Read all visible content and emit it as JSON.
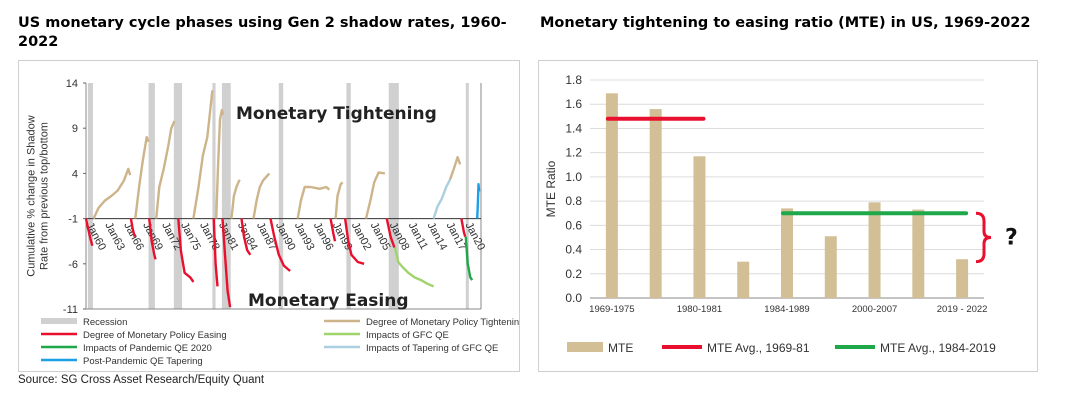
{
  "left_title": "US monetary cycle phases using Gen 2 shadow rates, 1960-2022",
  "right_title": "Monetary tightening to easing ratio (MTE) in US, 1969-2022",
  "source": "Source: SG Cross Asset Research/Equity Quant",
  "colors": {
    "recession": "#d0d0d0",
    "tightening": "#cdb48a",
    "easing": "#e8102e",
    "pandemic_qe": "#1ea84a",
    "gfc_qe": "#9fd36b",
    "gfc_tapering": "#a9cfe0",
    "post_pandemic_tapering": "#1aa0e6",
    "mte_bar": "#d2bf96",
    "mte_avg_1969_81": "#e8102e",
    "mte_avg_1984_2019": "#1ea84a"
  },
  "chart_data": [
    {
      "type": "line",
      "ylabel": "Cumulative % change in Shadow Rate from previous top/bottom",
      "xlabel": "",
      "ylim": [
        -11,
        14
      ],
      "yticks": [
        14,
        9,
        4,
        -1,
        -6,
        -11
      ],
      "xlim": [
        1960,
        2022.5
      ],
      "xtick_labels": [
        "Jan60",
        "Jan63",
        "Jan66",
        "Jan69",
        "Jan72",
        "Jan75",
        "Jan78",
        "Jan81",
        "Jan84",
        "Jan87",
        "Jan90",
        "Jan93",
        "Jan96",
        "Jan99",
        "Jan02",
        "Jan05",
        "Jan08",
        "Jan11",
        "Jan14",
        "Jan17",
        "Jan20"
      ],
      "annotations": [
        "Monetary Tightening",
        "Monetary Easing"
      ],
      "recessions": [
        [
          1960.3,
          1961.1
        ],
        [
          1969.9,
          1970.9
        ],
        [
          1973.9,
          1975.2
        ],
        [
          1980.0,
          1980.5
        ],
        [
          1981.5,
          1982.9
        ],
        [
          1990.5,
          1991.2
        ],
        [
          2001.2,
          2001.9
        ],
        [
          2007.9,
          2009.5
        ],
        [
          2020.1,
          2020.4
        ]
      ],
      "legend": [
        {
          "label": "Recession",
          "key": "recession"
        },
        {
          "label": "Degree of Monetary Policy Tightening",
          "key": "tightening"
        },
        {
          "label": "Degree of Monetary Policy Easing",
          "key": "easing"
        },
        {
          "label": "Impacts of GFC QE",
          "key": "gfc_qe"
        },
        {
          "label": "Impacts of Pandemic QE 2020",
          "key": "pandemic_qe"
        },
        {
          "label": "Impacts of Tapering of GFC QE",
          "key": "gfc_tapering"
        },
        {
          "label": "Post-Pandemic QE Tapering",
          "key": "post_pandemic_tapering"
        }
      ],
      "series": [
        {
          "key": "tightening",
          "points": [
            [
              1961.2,
              -1
            ],
            [
              1962,
              0.2
            ],
            [
              1963,
              1.0
            ],
            [
              1964,
              1.5
            ],
            [
              1965,
              2.1
            ],
            [
              1966,
              3.2
            ],
            [
              1966.7,
              4.5
            ],
            [
              1967,
              3.8
            ]
          ]
        },
        {
          "key": "easing",
          "points": [
            [
              1960.0,
              -1
            ],
            [
              1960.3,
              -2.0
            ],
            [
              1960.7,
              -3.2
            ],
            [
              1961.0,
              -4.0
            ]
          ]
        },
        {
          "key": "easing",
          "points": [
            [
              1967.1,
              -1
            ],
            [
              1967.4,
              -2.2
            ],
            [
              1967.7,
              -3.0
            ]
          ]
        },
        {
          "key": "tightening",
          "points": [
            [
              1967.8,
              -1
            ],
            [
              1968.4,
              2.5
            ],
            [
              1969.0,
              5.5
            ],
            [
              1969.6,
              8.0
            ],
            [
              1969.9,
              7.5
            ]
          ]
        },
        {
          "key": "easing",
          "points": [
            [
              1970.0,
              -1
            ],
            [
              1970.4,
              -3.5
            ],
            [
              1970.8,
              -5.0
            ],
            [
              1971.0,
              -5.5
            ]
          ]
        },
        {
          "key": "tightening",
          "points": [
            [
              1971.1,
              -1
            ],
            [
              1971.6,
              2.5
            ],
            [
              1972.3,
              4.5
            ],
            [
              1973.0,
              7.0
            ],
            [
              1973.5,
              9.0
            ],
            [
              1974.0,
              9.8
            ]
          ]
        },
        {
          "key": "easing",
          "points": [
            [
              1974.6,
              -1
            ],
            [
              1975.0,
              -4.5
            ],
            [
              1975.6,
              -7.0
            ],
            [
              1976.5,
              -7.5
            ],
            [
              1977.0,
              -8.0
            ]
          ]
        },
        {
          "key": "tightening",
          "points": [
            [
              1977.0,
              -1
            ],
            [
              1977.8,
              2.5
            ],
            [
              1978.5,
              6.0
            ],
            [
              1979.2,
              8.0
            ],
            [
              1980.0,
              13.2
            ]
          ]
        },
        {
          "key": "easing",
          "points": [
            [
              1980.2,
              -1
            ],
            [
              1980.5,
              -6.0
            ],
            [
              1980.8,
              -8.5
            ]
          ]
        },
        {
          "key": "tightening",
          "points": [
            [
              1980.6,
              -1
            ],
            [
              1980.9,
              5.0
            ],
            [
              1981.2,
              10.0
            ],
            [
              1981.5,
              11.0
            ],
            [
              1981.7,
              10.5
            ]
          ]
        },
        {
          "key": "easing",
          "points": [
            [
              1981.6,
              -1
            ],
            [
              1982.0,
              -5.0
            ],
            [
              1982.4,
              -9.0
            ],
            [
              1982.8,
              -10.8
            ]
          ]
        },
        {
          "key": "easing",
          "points": [
            [
              1984.6,
              -1
            ],
            [
              1985.0,
              -3.0
            ],
            [
              1985.5,
              -4.5
            ],
            [
              1986.0,
              -5.0
            ]
          ]
        },
        {
          "key": "tightening",
          "points": [
            [
              1983.0,
              -1
            ],
            [
              1983.4,
              1.5
            ],
            [
              1983.8,
              2.5
            ],
            [
              1984.3,
              3.3
            ]
          ]
        },
        {
          "key": "tightening",
          "points": [
            [
              1986.5,
              -1
            ],
            [
              1987.0,
              1.0
            ],
            [
              1987.5,
              2.5
            ],
            [
              1988.0,
              3.2
            ],
            [
              1989.0,
              4.0
            ]
          ]
        },
        {
          "key": "easing",
          "points": [
            [
              1989.2,
              -1
            ],
            [
              1989.8,
              -3.0
            ],
            [
              1990.5,
              -5.0
            ],
            [
              1991.3,
              -6.2
            ],
            [
              1992.3,
              -6.8
            ]
          ]
        },
        {
          "key": "tightening",
          "points": [
            [
              1993.5,
              -1
            ],
            [
              1994.0,
              1.0
            ],
            [
              1994.6,
              2.5
            ],
            [
              1995.5,
              2.5
            ],
            [
              1997.0,
              2.3
            ],
            [
              1998.0,
              2.5
            ],
            [
              1998.5,
              2.2
            ]
          ]
        },
        {
          "key": "easing",
          "points": [
            [
              1998.7,
              -1
            ],
            [
              1999.1,
              -2.5
            ],
            [
              1999.4,
              -3.5
            ]
          ]
        },
        {
          "key": "tightening",
          "points": [
            [
              1999.5,
              -1
            ],
            [
              1999.8,
              1.5
            ],
            [
              2000.3,
              2.8
            ],
            [
              2000.6,
              3.0
            ]
          ]
        },
        {
          "key": "easing",
          "points": [
            [
              2001.0,
              -1
            ],
            [
              2001.5,
              -3.5
            ],
            [
              2002.0,
              -5.0
            ],
            [
              2003.0,
              -5.8
            ],
            [
              2004.0,
              -6.0
            ]
          ]
        },
        {
          "key": "tightening",
          "points": [
            [
              2004.3,
              -1
            ],
            [
              2005.0,
              1.0
            ],
            [
              2005.6,
              3.0
            ],
            [
              2006.3,
              4.1
            ],
            [
              2007.3,
              4.0
            ]
          ]
        },
        {
          "key": "easing",
          "points": [
            [
              2007.6,
              -1
            ],
            [
              2008.2,
              -3.0
            ],
            [
              2008.8,
              -4.2
            ]
          ]
        },
        {
          "key": "gfc_qe",
          "points": [
            [
              2008.9,
              -4.2
            ],
            [
              2009.4,
              -5.8
            ],
            [
              2010.0,
              -6.3
            ],
            [
              2011.0,
              -7.0
            ],
            [
              2012.0,
              -7.5
            ],
            [
              2013.0,
              -7.8
            ],
            [
              2014.0,
              -8.2
            ],
            [
              2015.0,
              -8.5
            ]
          ]
        },
        {
          "key": "gfc_tapering",
          "points": [
            [
              2015.0,
              -1
            ],
            [
              2015.6,
              0.3
            ],
            [
              2016.3,
              1.2
            ],
            [
              2017.0,
              2.5
            ],
            [
              2017.6,
              3.3
            ]
          ]
        },
        {
          "key": "tightening",
          "points": [
            [
              2017.6,
              3.3
            ],
            [
              2018.2,
              4.5
            ],
            [
              2018.8,
              5.8
            ],
            [
              2019.2,
              5.0
            ]
          ]
        },
        {
          "key": "easing",
          "points": [
            [
              2019.4,
              -1
            ],
            [
              2019.8,
              -2.5
            ],
            [
              2020.0,
              -3.0
            ]
          ]
        },
        {
          "key": "pandemic_qe",
          "points": [
            [
              2020.1,
              -3.0
            ],
            [
              2020.4,
              -6.0
            ],
            [
              2020.8,
              -7.5
            ],
            [
              2021.1,
              -7.8
            ]
          ]
        },
        {
          "key": "post_pandemic_tapering",
          "points": [
            [
              2021.9,
              -1
            ],
            [
              2022.0,
              0.5
            ],
            [
              2022.1,
              2.8
            ],
            [
              2022.2,
              2.0
            ]
          ]
        }
      ]
    },
    {
      "type": "bar",
      "ylabel": "MTE Ratio",
      "xlabel": "",
      "ylim": [
        0,
        1.8
      ],
      "yticks": [
        "0.0",
        "0.2",
        "0.4",
        "0.6",
        "0.8",
        "1.0",
        "1.2",
        "1.4",
        "1.6",
        "1.8"
      ],
      "categories": [
        "1969-1975",
        "",
        "1980-1981",
        "",
        "1984-1989",
        "",
        "2000-2007",
        "",
        "2019 - 2022"
      ],
      "values": [
        1.69,
        1.56,
        1.17,
        0.3,
        0.74,
        0.51,
        0.79,
        0.73,
        0.32
      ],
      "reference_lines": [
        {
          "name": "MTE Avg., 1969-81",
          "value": 1.48,
          "from_index": 0,
          "to_index": 2,
          "color_key": "mte_avg_1969_81"
        },
        {
          "name": "MTE Avg., 1984-2019",
          "value": 0.7,
          "from_index": 4,
          "to_index": 8,
          "color_key": "mte_avg_1984_2019"
        }
      ],
      "annotation": "?",
      "legend": [
        {
          "label": "MTE",
          "kind": "bar"
        },
        {
          "label": "MTE Avg., 1969-81",
          "kind": "line",
          "color_key": "mte_avg_1969_81"
        },
        {
          "label": "MTE Avg., 1984-2019",
          "kind": "line",
          "color_key": "mte_avg_1984_2019"
        }
      ]
    }
  ]
}
